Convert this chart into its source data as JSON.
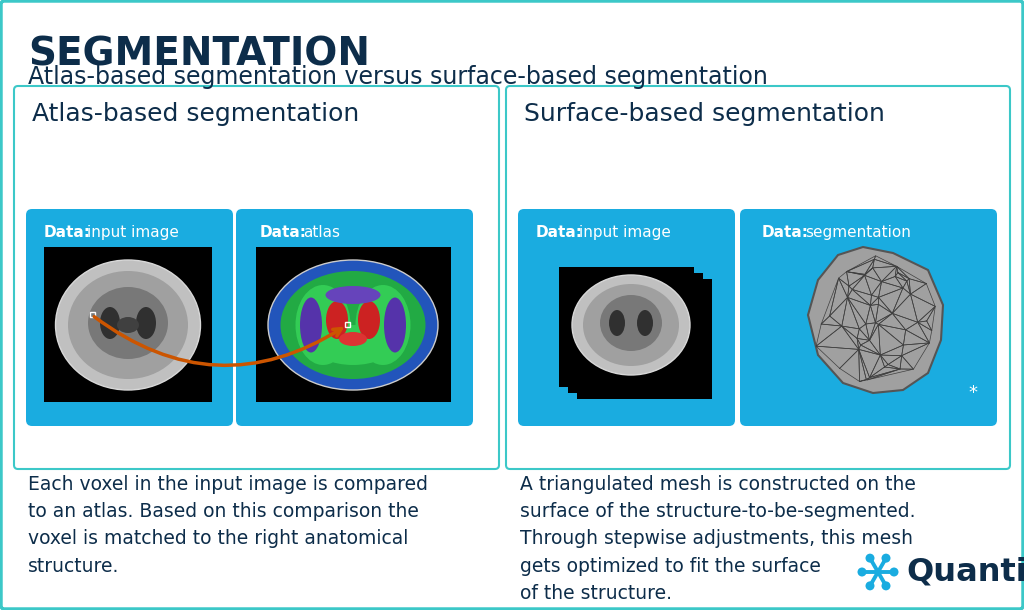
{
  "title": "SEGMENTATION",
  "subtitle": "Atlas-based segmentation versus surface-based segmentation",
  "bg_color": "#ffffff",
  "border_color": "#3CC8C8",
  "dark_text_color": "#0d2d4a",
  "blue_box_color": "#1aace0",
  "left_panel_title": "Atlas-based segmentation",
  "right_panel_title": "Surface-based segmentation",
  "left_label1_bold": "Data:",
  "left_label1_rest": " input image",
  "left_label2_bold": "Data:",
  "left_label2_rest": " atlas",
  "right_label1_bold": "Data:",
  "right_label1_rest": " input image",
  "right_label2_bold": "Data:",
  "right_label2_rest": " segmentation",
  "left_desc": "Each voxel in the input image is compared\nto an atlas. Based on this comparison the\nvoxel is matched to the right anatomical\nstructure.",
  "right_desc": "A triangulated mesh is constructed on the\nsurface of the structure-to-be-segmented.\nThrough stepwise adjustments, this mesh\ngets optimized to fit the surface\nof the structure.",
  "arrow_color": "#cc5500",
  "quantib_text": "Quantib",
  "quantib_color": "#0d2d4a",
  "quantib_icon_color": "#1aace0"
}
